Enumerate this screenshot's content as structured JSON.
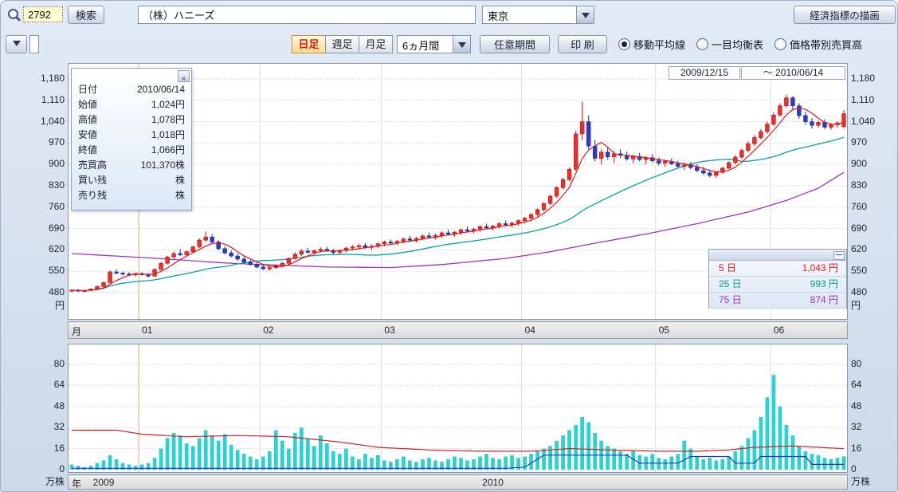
{
  "colors": {
    "up_candle": "#e03535",
    "up_candle_border": "#bf0d0d",
    "down_candle": "#2e3cc0",
    "down_candle_border": "#1a2890",
    "ma5": "#e01818",
    "ma25": "#00a396",
    "ma75": "#9933cc",
    "volume_bar": "#2fd0d0",
    "volume_ma_red": "#cc2222",
    "volume_line_blue": "#2233cc",
    "year_line": "#ddae72",
    "month_line": "#dcdcdc",
    "grid_line": "#c9c9c9"
  },
  "toolbar": {
    "code_value": "2792",
    "search_label": "検索",
    "company_value": "（株）ハニーズ",
    "exchange_value": "東京",
    "econ_button_label": "経済指標の描画"
  },
  "toolbar2": {
    "tabs": [
      {
        "label": "日足",
        "selected": true
      },
      {
        "label": "週足",
        "selected": false
      },
      {
        "label": "月足",
        "selected": false
      }
    ],
    "period_value": "6ヵ月間",
    "custom_period_label": "任意期間",
    "print_label": "印 刷",
    "radios": [
      {
        "label": "移動平均線",
        "selected": true
      },
      {
        "label": "一目均衡表",
        "selected": false
      },
      {
        "label": "価格帯別売買高",
        "selected": false
      }
    ]
  },
  "date_range": {
    "from": "2009/12/15",
    "to": "〜 2010/06/14"
  },
  "info_box": {
    "rows": [
      {
        "label": "日付",
        "value": "2010/06/14"
      },
      {
        "label": "始値",
        "value": "1,024円"
      },
      {
        "label": "高値",
        "value": "1,078円"
      },
      {
        "label": "安値",
        "value": "1,018円"
      },
      {
        "label": "終値",
        "value": "1,066円"
      },
      {
        "label": "売買高",
        "value": "101,370株"
      },
      {
        "label": "買い残",
        "value": "株"
      },
      {
        "label": "売り残",
        "value": "株"
      }
    ]
  },
  "ma_legend": {
    "rows": [
      {
        "label": "5 日",
        "value": "1,043 円",
        "color": "#e01818"
      },
      {
        "label": "25 日",
        "value": "993 円",
        "color": "#00a396"
      },
      {
        "label": "75 日",
        "value": "874 円",
        "color": "#9933cc"
      }
    ]
  },
  "price_axis": {
    "ticks": [
      "1,180",
      "1,110",
      "1,040",
      "970",
      "900",
      "830",
      "760",
      "690",
      "620",
      "550",
      "480"
    ],
    "unit": "円"
  },
  "volume_axis": {
    "ticks": [
      "80",
      "64",
      "48",
      "32",
      "16",
      "0"
    ],
    "unit": "万株"
  },
  "month_axis": {
    "caption": "月",
    "labels": [
      {
        "label": "01",
        "i": 11
      },
      {
        "label": "02",
        "i": 30
      },
      {
        "label": "03",
        "i": 49
      },
      {
        "label": "04",
        "i": 71
      },
      {
        "label": "05",
        "i": 92
      },
      {
        "label": "06",
        "i": 110
      }
    ]
  },
  "year_axis": {
    "caption": "年",
    "labels": [
      {
        "label": "2009",
        "i_start": 0,
        "i_end": 11
      },
      {
        "label": "2010",
        "i_start": 11,
        "i_end": 122
      }
    ]
  },
  "chart_data": [
    {
      "type": "candlestick",
      "period_from": "2009/12/15",
      "period_to": "2010/06/14",
      "y_axis": {
        "min": 480,
        "max": 1180,
        "step": 70,
        "unit": "円"
      },
      "legend_current": {
        "ma5": 1043,
        "ma25": 993,
        "ma75": 874
      },
      "candles": [
        [
          486,
          491,
          482,
          488
        ],
        [
          488,
          492,
          483,
          485
        ],
        [
          485,
          489,
          481,
          487
        ],
        [
          487,
          494,
          485,
          492
        ],
        [
          492,
          503,
          490,
          500
        ],
        [
          500,
          516,
          498,
          513
        ],
        [
          513,
          552,
          511,
          548
        ],
        [
          548,
          556,
          540,
          544
        ],
        [
          544,
          549,
          536,
          541
        ],
        [
          541,
          547,
          534,
          538
        ],
        [
          538,
          545,
          533,
          542
        ],
        [
          542,
          548,
          536,
          540
        ],
        [
          540,
          544,
          530,
          534
        ],
        [
          534,
          560,
          532,
          556
        ],
        [
          556,
          580,
          552,
          576
        ],
        [
          576,
          601,
          572,
          597
        ],
        [
          597,
          615,
          590,
          608
        ],
        [
          608,
          622,
          600,
          604
        ],
        [
          604,
          618,
          598,
          614
        ],
        [
          614,
          634,
          610,
          630
        ],
        [
          630,
          658,
          626,
          652
        ],
        [
          652,
          680,
          648,
          662
        ],
        [
          662,
          672,
          640,
          646
        ],
        [
          646,
          652,
          618,
          624
        ],
        [
          624,
          632,
          606,
          610
        ],
        [
          610,
          618,
          596,
          600
        ],
        [
          600,
          608,
          584,
          590
        ],
        [
          590,
          598,
          576,
          580
        ],
        [
          580,
          588,
          568,
          572
        ],
        [
          572,
          578,
          560,
          564
        ],
        [
          564,
          570,
          554,
          558
        ],
        [
          558,
          566,
          552,
          562
        ],
        [
          562,
          572,
          558,
          568
        ],
        [
          568,
          580,
          564,
          576
        ],
        [
          576,
          596,
          572,
          592
        ],
        [
          592,
          612,
          588,
          606
        ],
        [
          606,
          622,
          600,
          616
        ],
        [
          616,
          626,
          608,
          612
        ],
        [
          612,
          620,
          604,
          618
        ],
        [
          618,
          628,
          612,
          622
        ],
        [
          622,
          630,
          614,
          618
        ],
        [
          618,
          624,
          606,
          612
        ],
        [
          612,
          622,
          606,
          618
        ],
        [
          618,
          630,
          612,
          626
        ],
        [
          626,
          636,
          618,
          630
        ],
        [
          630,
          640,
          622,
          634
        ],
        [
          634,
          642,
          624,
          628
        ],
        [
          628,
          638,
          620,
          632
        ],
        [
          632,
          644,
          626,
          640
        ],
        [
          640,
          650,
          632,
          646
        ],
        [
          646,
          654,
          636,
          642
        ],
        [
          642,
          652,
          636,
          648
        ],
        [
          648,
          660,
          642,
          656
        ],
        [
          656,
          666,
          648,
          652
        ],
        [
          652,
          662,
          644,
          658
        ],
        [
          658,
          670,
          652,
          666
        ],
        [
          666,
          676,
          658,
          662
        ],
        [
          662,
          672,
          654,
          668
        ],
        [
          668,
          680,
          660,
          676
        ],
        [
          676,
          686,
          668,
          672
        ],
        [
          672,
          682,
          664,
          678
        ],
        [
          678,
          690,
          670,
          686
        ],
        [
          686,
          696,
          678,
          682
        ],
        [
          682,
          692,
          674,
          688
        ],
        [
          688,
          700,
          680,
          696
        ],
        [
          696,
          706,
          688,
          692
        ],
        [
          692,
          702,
          684,
          698
        ],
        [
          698,
          710,
          690,
          706
        ],
        [
          706,
          716,
          698,
          702
        ],
        [
          702,
          712,
          694,
          708
        ],
        [
          708,
          720,
          700,
          716
        ],
        [
          716,
          728,
          708,
          724
        ],
        [
          724,
          740,
          718,
          736
        ],
        [
          736,
          756,
          730,
          752
        ],
        [
          752,
          776,
          746,
          772
        ],
        [
          772,
          800,
          766,
          796
        ],
        [
          796,
          828,
          790,
          824
        ],
        [
          824,
          856,
          818,
          850
        ],
        [
          850,
          890,
          844,
          884
        ],
        [
          884,
          1010,
          880,
          1000
        ],
        [
          1000,
          1105,
          980,
          1040
        ],
        [
          1040,
          1060,
          950,
          960
        ],
        [
          960,
          980,
          910,
          920
        ],
        [
          920,
          950,
          900,
          940
        ],
        [
          940,
          955,
          915,
          925
        ],
        [
          925,
          945,
          905,
          935
        ],
        [
          935,
          950,
          920,
          930
        ],
        [
          930,
          942,
          912,
          918
        ],
        [
          918,
          932,
          904,
          926
        ],
        [
          926,
          938,
          910,
          916
        ],
        [
          916,
          928,
          900,
          922
        ],
        [
          922,
          934,
          906,
          912
        ],
        [
          912,
          922,
          896,
          904
        ],
        [
          904,
          916,
          892,
          910
        ],
        [
          910,
          920,
          898,
          902
        ],
        [
          902,
          912,
          888,
          894
        ],
        [
          894,
          906,
          882,
          898
        ],
        [
          898,
          908,
          884,
          890
        ],
        [
          890,
          900,
          874,
          880
        ],
        [
          880,
          892,
          866,
          872
        ],
        [
          872,
          882,
          858,
          864
        ],
        [
          864,
          878,
          856,
          874
        ],
        [
          874,
          892,
          870,
          888
        ],
        [
          888,
          910,
          884,
          906
        ],
        [
          906,
          930,
          900,
          924
        ],
        [
          924,
          952,
          918,
          946
        ],
        [
          946,
          976,
          940,
          968
        ],
        [
          968,
          996,
          960,
          988
        ],
        [
          988,
          1016,
          982,
          1008
        ],
        [
          1008,
          1040,
          1000,
          1032
        ],
        [
          1032,
          1070,
          1026,
          1062
        ],
        [
          1062,
          1100,
          1056,
          1092
        ],
        [
          1092,
          1128,
          1086,
          1118
        ],
        [
          1118,
          1124,
          1080,
          1092
        ],
        [
          1092,
          1100,
          1050,
          1060
        ],
        [
          1060,
          1072,
          1030,
          1040
        ],
        [
          1040,
          1052,
          1018,
          1028
        ],
        [
          1028,
          1044,
          1020,
          1038
        ],
        [
          1038,
          1048,
          1016,
          1022
        ],
        [
          1022,
          1036,
          1014,
          1030
        ],
        [
          1030,
          1042,
          1020,
          1036
        ],
        [
          1024,
          1078,
          1018,
          1066
        ]
      ],
      "ma5_window": 5,
      "ma25_window": 25,
      "ma75_keypoints": [
        [
          0,
          608
        ],
        [
          12,
          594
        ],
        [
          25,
          576
        ],
        [
          40,
          564
        ],
        [
          50,
          562
        ],
        [
          58,
          572
        ],
        [
          68,
          592
        ],
        [
          75,
          614
        ],
        [
          82,
          642
        ],
        [
          90,
          672
        ],
        [
          98,
          706
        ],
        [
          106,
          744
        ],
        [
          112,
          782
        ],
        [
          117,
          822
        ],
        [
          121,
          874
        ]
      ]
    },
    {
      "type": "bar",
      "y_axis": {
        "min": 0,
        "max": 80,
        "step": 16,
        "unit": "万株"
      },
      "values": [
        4,
        3,
        2,
        3,
        5,
        7,
        11,
        8,
        5,
        4,
        3,
        4,
        5,
        9,
        16,
        24,
        28,
        26,
        20,
        18,
        24,
        30,
        26,
        22,
        27,
        19,
        15,
        12,
        10,
        8,
        10,
        14,
        30,
        22,
        16,
        28,
        32,
        24,
        18,
        26,
        20,
        14,
        12,
        16,
        10,
        8,
        12,
        9,
        11,
        7,
        6,
        8,
        10,
        7,
        6,
        8,
        9,
        7,
        6,
        8,
        10,
        9,
        7,
        8,
        10,
        12,
        9,
        8,
        10,
        11,
        9,
        10,
        12,
        14,
        16,
        18,
        22,
        26,
        30,
        34,
        40,
        36,
        28,
        22,
        18,
        16,
        14,
        12,
        14,
        11,
        10,
        12,
        9,
        8,
        10,
        12,
        22,
        16,
        10,
        8,
        9,
        7,
        8,
        10,
        14,
        18,
        24,
        30,
        40,
        55,
        72,
        48,
        34,
        26,
        18,
        14,
        12,
        11,
        9,
        8,
        9,
        10.1
      ],
      "red_line_keypoints": [
        [
          0,
          30
        ],
        [
          7,
          30
        ],
        [
          11,
          27
        ],
        [
          18,
          25
        ],
        [
          26,
          26
        ],
        [
          34,
          25
        ],
        [
          42,
          21
        ],
        [
          48,
          17
        ],
        [
          56,
          15
        ],
        [
          64,
          14
        ],
        [
          72,
          14
        ],
        [
          78,
          16
        ],
        [
          84,
          15
        ],
        [
          92,
          14
        ],
        [
          98,
          14
        ],
        [
          103,
          15
        ],
        [
          107,
          17
        ],
        [
          113,
          18
        ],
        [
          117,
          17
        ],
        [
          121,
          16
        ]
      ],
      "blue_line_keypoints": [
        [
          0,
          1
        ],
        [
          68,
          1
        ],
        [
          71,
          2
        ],
        [
          74,
          11
        ],
        [
          87,
          11
        ],
        [
          89,
          5
        ],
        [
          95,
          5
        ],
        [
          97,
          10
        ],
        [
          103,
          10
        ],
        [
          104,
          5
        ],
        [
          107,
          5
        ],
        [
          108,
          10
        ],
        [
          115,
          10
        ],
        [
          116,
          4
        ],
        [
          121,
          4
        ]
      ]
    }
  ]
}
